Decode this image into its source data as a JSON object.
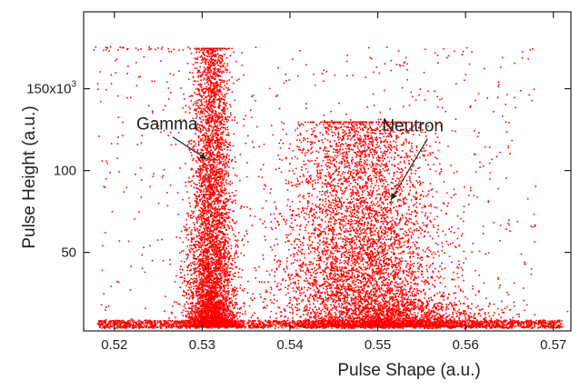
{
  "chart_data": {
    "type": "scatter",
    "xlabel": "Pulse Shape (a.u.)",
    "ylabel": "Pulse Height (a.u.)",
    "xlim": [
      0.5165,
      0.572
    ],
    "ylim": [
      2000,
      197000
    ],
    "x_ticks": [
      0.52,
      0.53,
      0.54,
      0.55,
      0.56,
      0.57
    ],
    "x_tick_labels": [
      "0.52",
      "0.53",
      "0.54",
      "0.55",
      "0.56",
      "0.57"
    ],
    "y_ticks": [
      50000,
      100000,
      150000
    ],
    "y_tick_labels": [
      "50",
      "100",
      "150x10"
    ],
    "y_tick_superscript": "3",
    "marker_color": "#ff0000",
    "grid": false,
    "clusters": [
      {
        "name": "Gamma",
        "center_x": 0.531,
        "center_y": 30000,
        "x_spread": 0.0009,
        "peak_height": 175000,
        "arrow_tip": [
          0.5305,
          107000
        ]
      },
      {
        "name": "Neutron",
        "center_x": 0.548,
        "center_y": 22000,
        "x_spread": 0.0035,
        "peak_height": 130000,
        "arrow_tip": [
          0.5515,
          82000
        ]
      }
    ],
    "annotations": [
      {
        "text": "Gamma",
        "x": 0.5225,
        "y": 125000
      },
      {
        "text": "Neutron",
        "x": 0.5505,
        "y": 124000
      }
    ]
  }
}
